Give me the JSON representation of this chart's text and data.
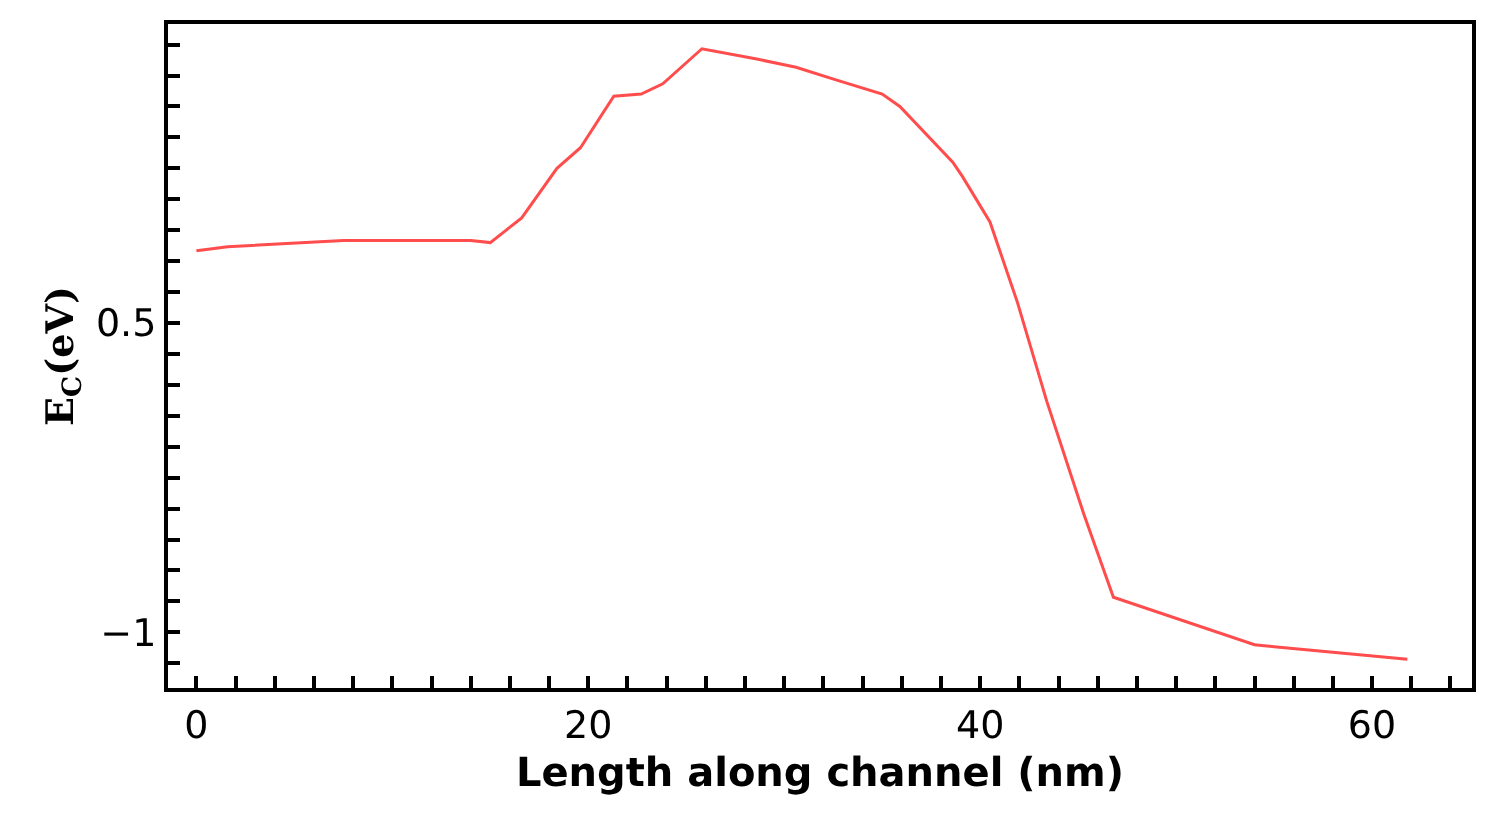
{
  "chart_data": {
    "type": "line",
    "xlabel": "Length along channel (nm)",
    "ylabel": "E$_{C}$(eV)",
    "series": [
      {
        "color": "#ff4d4d",
        "x": [
          0.0,
          1.6,
          7.5,
          14.0,
          15.0,
          16.6,
          18.4,
          19.6,
          21.3,
          22.7,
          23.8,
          25.8,
          28.6,
          30.6,
          32.6,
          35.0,
          35.9,
          38.6,
          39.1,
          40.5,
          41.9,
          43.4,
          45.3,
          46.8,
          54.0,
          55.0,
          61.8
        ],
        "values": [
          0.85,
          0.87,
          0.9,
          0.9,
          0.89,
          1.01,
          1.25,
          1.35,
          1.6,
          1.61,
          1.66,
          1.83,
          1.78,
          1.74,
          1.68,
          1.61,
          1.55,
          1.28,
          1.21,
          0.99,
          0.6,
          0.12,
          -0.43,
          -0.83,
          -1.06,
          -1.07,
          -1.13
        ]
      }
    ],
    "xlim": [
      -1.45,
      65.1
    ],
    "ylim": [
      -1.27,
      1.95
    ],
    "xticks": [
      0,
      {
        "value": 2,
        "label": null
      },
      {
        "value": 4,
        "label": null
      },
      {
        "value": 6,
        "label": null
      },
      {
        "value": 8,
        "label": null
      },
      {
        "value": 10,
        "label": null
      },
      {
        "value": 12,
        "label": null
      },
      {
        "value": 14,
        "label": null
      },
      {
        "value": 16,
        "label": null
      },
      {
        "value": 18,
        "label": null
      },
      20,
      {
        "value": 22,
        "label": null
      },
      {
        "value": 24,
        "label": null
      },
      {
        "value": 26,
        "label": null
      },
      {
        "value": 28,
        "label": null
      },
      {
        "value": 30,
        "label": null
      },
      {
        "value": 32,
        "label": null
      },
      {
        "value": 34,
        "label": null
      },
      {
        "value": 36,
        "label": null
      },
      {
        "value": 38,
        "label": null
      },
      40,
      {
        "value": 42,
        "label": null
      },
      {
        "value": 44,
        "label": null
      },
      {
        "value": 46,
        "label": null
      },
      {
        "value": 48,
        "label": null
      },
      {
        "value": 50,
        "label": null
      },
      {
        "value": 52,
        "label": null
      },
      {
        "value": 54,
        "label": null
      },
      {
        "value": 56,
        "label": null
      },
      {
        "value": 58,
        "label": null
      },
      60,
      {
        "value": 62,
        "label": null
      },
      {
        "value": 64,
        "label": null
      }
    ],
    "yticks": [
      {
        "value": -1.15,
        "label": null
      },
      -1,
      {
        "value": -0.85,
        "label": null
      },
      {
        "value": -0.7,
        "label": null
      },
      {
        "value": -0.55,
        "label": null
      },
      {
        "value": -0.4,
        "label": null
      },
      {
        "value": -0.25,
        "label": null
      },
      {
        "value": -0.1,
        "label": null
      },
      {
        "value": 0.05,
        "label": null
      },
      {
        "value": 0.2,
        "label": null
      },
      {
        "value": 0.35,
        "label": null
      },
      0.5,
      {
        "value": 0.65,
        "label": null
      },
      {
        "value": 0.8,
        "label": null
      },
      {
        "value": 0.95,
        "label": null
      },
      {
        "value": 1.1,
        "label": null
      },
      {
        "value": 1.25,
        "label": null
      },
      {
        "value": 1.4,
        "label": null
      },
      {
        "value": 1.55,
        "label": null
      },
      {
        "value": 1.7,
        "label": null
      },
      {
        "value": 1.85,
        "label": null
      }
    ],
    "marker": "none",
    "line_style": "solid"
  }
}
